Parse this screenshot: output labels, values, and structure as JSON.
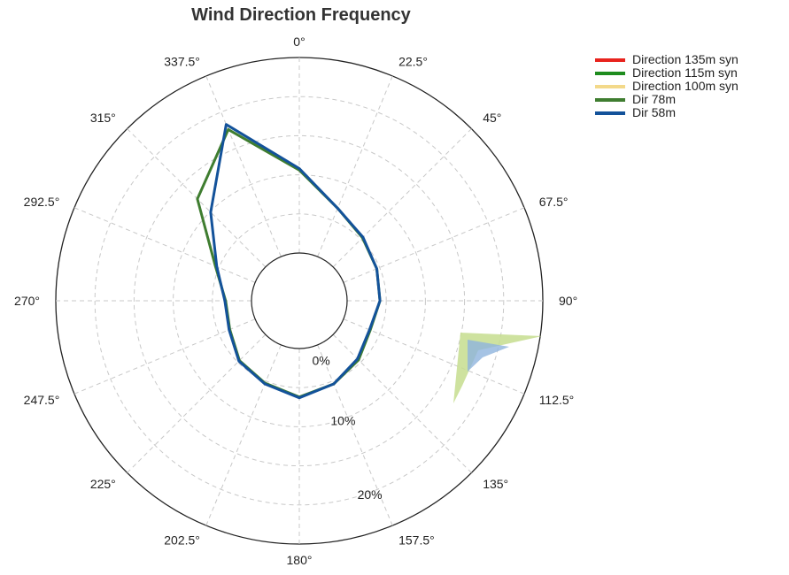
{
  "chart_data": {
    "type": "line",
    "subtype": "polar",
    "title": "Wind Direction Frequency",
    "angular_ticks": [
      "0°",
      "22.5°",
      "45°",
      "67.5°",
      "90°",
      "112.5°",
      "135°",
      "157.5°",
      "180°",
      "202.5°",
      "225°",
      "247.5°",
      "270°",
      "292.5°",
      "315°",
      "337.5°"
    ],
    "radial_ticks": [
      {
        "value": 0,
        "label": "0%"
      },
      {
        "value": 10,
        "label": "10%"
      },
      {
        "value": 20,
        "label": "20%"
      }
    ],
    "radial_range": [
      0,
      25
    ],
    "grid": true,
    "legend_position": "top-right",
    "directions": [
      0,
      22.5,
      45,
      67.5,
      90,
      112.5,
      135,
      157.5,
      180,
      202.5,
      225,
      247.5,
      270,
      292.5,
      315,
      337.5
    ],
    "series": [
      {
        "name": "Direction 135m syn",
        "color": "#e8231d",
        "values": [
          null,
          null,
          null,
          null,
          null,
          null,
          null,
          null,
          null,
          null,
          null,
          null,
          null,
          null,
          null,
          null
        ]
      },
      {
        "name": "Direction 115m syn",
        "color": "#1e8c1e",
        "values": [
          null,
          null,
          null,
          null,
          null,
          null,
          null,
          null,
          null,
          null,
          null,
          null,
          null,
          null,
          null,
          null
        ]
      },
      {
        "name": "Direction 100m syn",
        "color": "#f3d98a",
        "values": [
          null,
          null,
          null,
          null,
          null,
          null,
          null,
          null,
          null,
          null,
          null,
          null,
          null,
          null,
          null,
          null
        ]
      },
      {
        "name": "Dir 78m",
        "color": "#3f7d30",
        "values": [
          10.6,
          6.7,
          5.3,
          4.6,
          4.2,
          3.7,
          4.6,
          5.4,
          6.2,
          5.3,
          4.7,
          3.5,
          3.3,
          5.5,
          12.3,
          17.6
        ]
      },
      {
        "name": "Dir 58m",
        "color": "#13529a",
        "values": [
          10.8,
          6.7,
          5.4,
          4.6,
          4.2,
          3.6,
          4.4,
          5.4,
          6.3,
          5.4,
          4.8,
          3.6,
          3.4,
          5.3,
          9.9,
          18.3
        ]
      }
    ]
  }
}
